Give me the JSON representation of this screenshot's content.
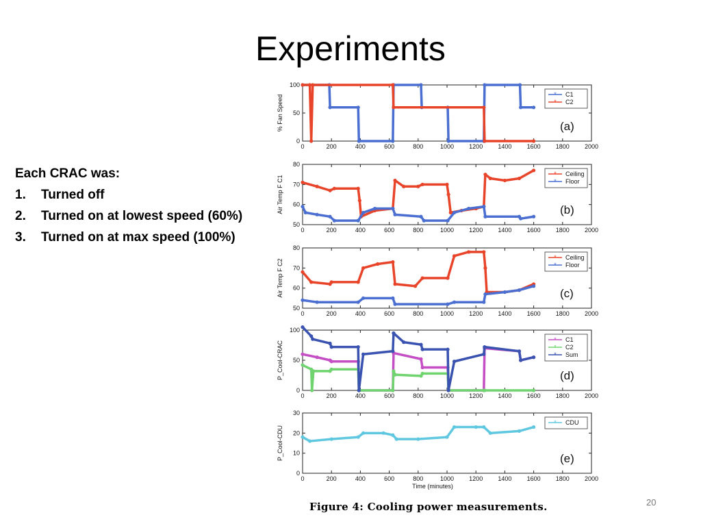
{
  "slide": {
    "title": "Experiments",
    "bullets": {
      "heading": "Each CRAC was:",
      "items": [
        {
          "num": "1.",
          "text": "Turned off"
        },
        {
          "num": "2.",
          "text": "Turned on at lowest speed (60%)"
        },
        {
          "num": "3.",
          "text": "Turned on at max speed (100%)"
        }
      ]
    },
    "caption": "Figure 4:  Cooling power measurements.",
    "slide_number": "20"
  },
  "chart_data": [
    {
      "type": "line",
      "panel_label": "(a)",
      "ylabel": "% Fan Speed",
      "xlabel": "",
      "xlim": [
        0,
        2000
      ],
      "ylim": [
        0,
        100
      ],
      "yticks": [
        0,
        50,
        100
      ],
      "xticks": [
        0,
        200,
        400,
        600,
        800,
        1000,
        1200,
        1400,
        1600,
        1800,
        2000
      ],
      "legend": "top-right",
      "series": [
        {
          "name": "C1",
          "color": "#4a6fd1",
          "x": [
            0,
            185,
            190,
            385,
            390,
            625,
            630,
            820,
            825,
            1005,
            1010,
            1255,
            1260,
            1505,
            1510,
            1600
          ],
          "y": [
            100,
            100,
            60,
            60,
            0,
            0,
            100,
            100,
            60,
            60,
            0,
            0,
            100,
            100,
            60,
            60
          ]
        },
        {
          "name": "C2",
          "color": "#e8442a",
          "x": [
            0,
            50,
            60,
            70,
            625,
            630,
            1255,
            1260,
            1600
          ],
          "y": [
            100,
            100,
            0,
            100,
            100,
            60,
            60,
            0,
            0
          ]
        }
      ]
    },
    {
      "type": "line",
      "panel_label": "(b)",
      "ylabel": "Air Temp F C1",
      "xlabel": "",
      "xlim": [
        0,
        2000
      ],
      "ylim": [
        50,
        80
      ],
      "yticks": [
        50,
        60,
        70,
        80
      ],
      "xticks": [
        0,
        200,
        400,
        600,
        800,
        1000,
        1200,
        1400,
        1600,
        1800,
        2000
      ],
      "legend": "top-right",
      "series": [
        {
          "name": "Ceiling",
          "color": "#e8442a",
          "x": [
            0,
            100,
            190,
            220,
            385,
            395,
            405,
            500,
            625,
            640,
            700,
            800,
            830,
            1000,
            1010,
            1025,
            1100,
            1200,
            1255,
            1265,
            1300,
            1400,
            1500,
            1600
          ],
          "y": [
            71,
            69,
            67,
            68,
            68,
            62,
            54,
            57,
            58,
            72,
            69,
            69,
            70,
            70,
            65,
            56,
            57,
            58,
            59,
            75,
            73,
            72,
            73,
            77
          ]
        },
        {
          "name": "Floor",
          "color": "#4a6fd1",
          "x": [
            0,
            20,
            100,
            190,
            220,
            385,
            420,
            500,
            625,
            640,
            820,
            840,
            1005,
            1050,
            1150,
            1255,
            1265,
            1500,
            1510,
            1600
          ],
          "y": [
            59,
            56,
            55,
            54,
            52,
            52,
            56,
            58,
            58,
            55,
            54,
            52,
            52,
            56,
            58,
            59,
            54,
            54,
            53,
            54
          ]
        }
      ]
    },
    {
      "type": "line",
      "panel_label": "(c)",
      "ylabel": "Air Temp F C2",
      "xlabel": "",
      "xlim": [
        0,
        2000
      ],
      "ylim": [
        50,
        80
      ],
      "yticks": [
        50,
        60,
        70,
        80
      ],
      "xticks": [
        0,
        200,
        400,
        600,
        800,
        1000,
        1200,
        1400,
        1600,
        1800,
        2000
      ],
      "legend": "top-right",
      "series": [
        {
          "name": "Ceiling",
          "color": "#e8442a",
          "x": [
            0,
            60,
            190,
            200,
            385,
            420,
            520,
            625,
            640,
            780,
            830,
            1005,
            1050,
            1150,
            1255,
            1265,
            1275,
            1400,
            1500,
            1600
          ],
          "y": [
            68,
            63,
            62,
            63,
            63,
            70,
            72,
            73,
            62,
            61,
            65,
            65,
            76,
            78,
            78,
            70,
            58,
            58,
            59,
            62
          ]
        },
        {
          "name": "Floor",
          "color": "#4a6fd1",
          "x": [
            0,
            100,
            385,
            420,
            625,
            640,
            1005,
            1050,
            1255,
            1265,
            1400,
            1500,
            1600
          ],
          "y": [
            54,
            53,
            53,
            55,
            55,
            52,
            52,
            53,
            53,
            57,
            58,
            59,
            61
          ]
        }
      ]
    },
    {
      "type": "line",
      "panel_label": "(d)",
      "ylabel": "P_Cool-CRAC",
      "xlabel": "",
      "xlim": [
        0,
        2000
      ],
      "ylim": [
        0,
        100
      ],
      "yticks": [
        0,
        50,
        100
      ],
      "xticks": [
        0,
        200,
        400,
        600,
        800,
        1000,
        1200,
        1400,
        1600,
        1800,
        2000
      ],
      "legend": "top-right",
      "series": [
        {
          "name": "C1",
          "color": "#c44fc4",
          "x": [
            0,
            100,
            190,
            200,
            385,
            390,
            625,
            630,
            820,
            830,
            1005,
            1010,
            1255,
            1260,
            1500,
            1510,
            1600
          ],
          "y": [
            60,
            55,
            50,
            48,
            48,
            0,
            0,
            62,
            52,
            38,
            38,
            0,
            0,
            70,
            65,
            50,
            55
          ]
        },
        {
          "name": "C2",
          "color": "#6fd46f",
          "x": [
            0,
            60,
            65,
            75,
            190,
            200,
            385,
            390,
            625,
            630,
            640,
            820,
            830,
            1005,
            1010,
            1255,
            1260,
            1600
          ],
          "y": [
            42,
            35,
            0,
            32,
            32,
            35,
            35,
            0,
            0,
            32,
            26,
            24,
            28,
            28,
            0,
            0,
            0,
            0
          ]
        },
        {
          "name": "Sum",
          "color": "#3a52b0",
          "x": [
            0,
            60,
            70,
            190,
            200,
            385,
            390,
            420,
            625,
            630,
            700,
            820,
            830,
            1005,
            1010,
            1050,
            1255,
            1260,
            1500,
            1510,
            1600
          ],
          "y": [
            105,
            90,
            85,
            78,
            72,
            72,
            0,
            60,
            65,
            95,
            80,
            76,
            68,
            68,
            0,
            48,
            60,
            72,
            65,
            50,
            55
          ]
        }
      ]
    },
    {
      "type": "line",
      "panel_label": "(e)",
      "ylabel": "P_Cool-CDU",
      "xlabel": "Time (minutes)",
      "xlim": [
        0,
        2000
      ],
      "ylim": [
        0,
        30
      ],
      "yticks": [
        0,
        10,
        20,
        30
      ],
      "xticks": [
        0,
        200,
        400,
        600,
        800,
        1000,
        1200,
        1400,
        1600,
        1800,
        2000
      ],
      "legend": "top-right",
      "series": [
        {
          "name": "CDU",
          "color": "#5fc8e0",
          "x": [
            0,
            50,
            200,
            385,
            420,
            560,
            625,
            650,
            800,
            1000,
            1050,
            1200,
            1255,
            1300,
            1500,
            1600
          ],
          "y": [
            18,
            16,
            17,
            18,
            20,
            20,
            19,
            17,
            17,
            18,
            23,
            23,
            23,
            20,
            21,
            23
          ]
        }
      ]
    }
  ]
}
